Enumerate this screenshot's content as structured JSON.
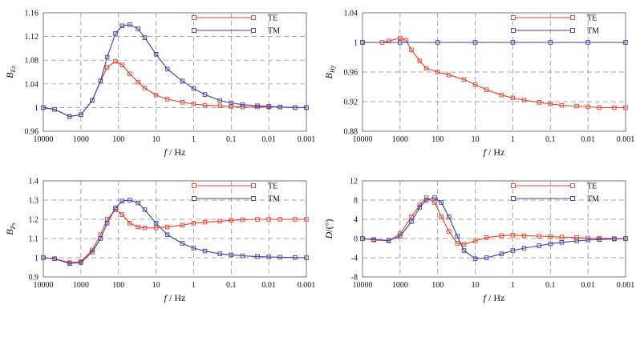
{
  "colors": {
    "TE": "#e8412b",
    "TM": "#3f3f9e"
  },
  "chart_data": [
    {
      "type": "line",
      "xscale": "log-reversed",
      "xlim": [
        10000,
        0.001
      ],
      "ylim": [
        0.96,
        1.16
      ],
      "x_ticks": [
        "10000",
        "1000",
        "100",
        "10",
        "1",
        "0.1",
        "0.01",
        "0.001"
      ],
      "y_ticks": [
        "0.96",
        "1",
        "1.04",
        "1.08",
        "1.12",
        "1.16"
      ],
      "y_tick_values": [
        0.96,
        1.0,
        1.04,
        1.08,
        1.12,
        1.16
      ],
      "xlabel_var": "f",
      "xlabel_unit": "/ Hz",
      "ylabel_main": "B",
      "ylabel_sub": "Ex",
      "legend_position": "top-right",
      "series": [
        {
          "name": "TE",
          "x": [
            10000,
            5000,
            2000,
            1000,
            500,
            300,
            200,
            120,
            80,
            50,
            30,
            20,
            10,
            5,
            2,
            1,
            0.5,
            0.2,
            0.1,
            0.05,
            0.02,
            0.01,
            0.005,
            0.002,
            0.001
          ],
          "y": [
            1.0,
            0.997,
            0.985,
            0.988,
            1.012,
            1.045,
            1.068,
            1.078,
            1.072,
            1.057,
            1.043,
            1.033,
            1.021,
            1.014,
            1.009,
            1.006,
            1.004,
            1.003,
            1.002,
            1.001,
            1.001,
            1.001,
            1.001,
            1.0,
            1.0
          ]
        },
        {
          "name": "TM",
          "x": [
            10000,
            5000,
            2000,
            1000,
            500,
            300,
            200,
            120,
            80,
            50,
            30,
            20,
            10,
            5,
            2,
            1,
            0.5,
            0.2,
            0.1,
            0.05,
            0.02,
            0.01,
            0.005,
            0.002,
            0.001
          ],
          "y": [
            1.0,
            0.997,
            0.985,
            0.988,
            1.012,
            1.045,
            1.085,
            1.125,
            1.138,
            1.14,
            1.133,
            1.118,
            1.09,
            1.065,
            1.045,
            1.032,
            1.022,
            1.012,
            1.008,
            1.005,
            1.003,
            1.002,
            1.001,
            1.0,
            1.0
          ]
        }
      ]
    },
    {
      "type": "line",
      "xscale": "log-reversed",
      "xlim": [
        10000,
        0.001
      ],
      "ylim": [
        0.88,
        1.04
      ],
      "x_ticks": [
        "10000",
        "1000",
        "100",
        "10",
        "1",
        "0.1",
        "0.01",
        "0.001"
      ],
      "y_ticks": [
        "0.88",
        "0.92",
        "0.96",
        "1",
        "1.04"
      ],
      "y_tick_values": [
        0.88,
        0.92,
        0.96,
        1.0,
        1.04
      ],
      "xlabel_var": "f",
      "xlabel_unit": "/ Hz",
      "ylabel_main": "B",
      "ylabel_sub": "Hy",
      "legend_position": "top-right",
      "series": [
        {
          "name": "TE",
          "x": [
            10000,
            3000,
            2000,
            1000,
            700,
            500,
            300,
            200,
            100,
            50,
            20,
            10,
            5,
            2,
            1,
            0.5,
            0.2,
            0.1,
            0.05,
            0.02,
            0.01,
            0.005,
            0.002,
            0.001
          ],
          "y": [
            1.0,
            1.0,
            1.002,
            1.006,
            1.003,
            0.99,
            0.975,
            0.965,
            0.96,
            0.956,
            0.95,
            0.943,
            0.936,
            0.929,
            0.925,
            0.922,
            0.919,
            0.917,
            0.915,
            0.914,
            0.913,
            0.912,
            0.912,
            0.912
          ]
        },
        {
          "name": "TM",
          "x": [
            10000,
            1000,
            100,
            10,
            1,
            0.1,
            0.01,
            0.001
          ],
          "y": [
            1.0,
            1.0,
            1.0,
            1.0,
            1.0,
            1.0,
            1.0,
            1.0
          ]
        }
      ]
    },
    {
      "type": "line",
      "xscale": "log-reversed",
      "xlim": [
        10000,
        0.001
      ],
      "ylim": [
        0.9,
        1.4
      ],
      "x_ticks": [
        "10000",
        "1000",
        "100",
        "10",
        "1",
        "0.1",
        "0.01",
        "0.001"
      ],
      "y_ticks": [
        "0.9",
        "1",
        "1.1",
        "1.2",
        "1.3",
        "1.4"
      ],
      "y_tick_values": [
        0.9,
        1.0,
        1.1,
        1.2,
        1.3,
        1.4
      ],
      "xlabel_var": "f",
      "xlabel_unit": "/ Hz",
      "ylabel_main": "B",
      "ylabel_sub": "Ps",
      "legend_position": "top-right",
      "series": [
        {
          "name": "TE",
          "x": [
            10000,
            5000,
            2000,
            1000,
            500,
            300,
            200,
            120,
            80,
            50,
            30,
            20,
            10,
            5,
            2,
            1,
            0.5,
            0.2,
            0.1,
            0.05,
            0.02,
            0.01,
            0.005,
            0.002,
            0.001
          ],
          "y": [
            1.0,
            0.995,
            0.975,
            0.98,
            1.04,
            1.12,
            1.2,
            1.25,
            1.225,
            1.18,
            1.16,
            1.155,
            1.155,
            1.16,
            1.17,
            1.18,
            1.185,
            1.19,
            1.195,
            1.198,
            1.2,
            1.2,
            1.2,
            1.2,
            1.2
          ]
        },
        {
          "name": "TM",
          "x": [
            10000,
            5000,
            2000,
            1000,
            500,
            300,
            200,
            120,
            80,
            50,
            30,
            20,
            10,
            5,
            2,
            1,
            0.5,
            0.2,
            0.1,
            0.05,
            0.02,
            0.01,
            0.005,
            0.002,
            0.001
          ],
          "y": [
            1.0,
            0.995,
            0.97,
            0.975,
            1.03,
            1.1,
            1.18,
            1.26,
            1.295,
            1.3,
            1.285,
            1.25,
            1.18,
            1.12,
            1.075,
            1.05,
            1.035,
            1.02,
            1.015,
            1.01,
            1.006,
            1.004,
            1.003,
            1.001,
            1.0
          ]
        }
      ]
    },
    {
      "type": "line",
      "xscale": "log-reversed",
      "xlim": [
        10000,
        0.001
      ],
      "ylim": [
        -8,
        12
      ],
      "x_ticks": [
        "10000",
        "1000",
        "100",
        "10",
        "1",
        "0.1",
        "0.01",
        "0.001"
      ],
      "y_ticks": [
        "-8",
        "-4",
        "0",
        "4",
        "8",
        "12"
      ],
      "y_tick_values": [
        -8,
        -4,
        0,
        4,
        8,
        12
      ],
      "xlabel_var": "f",
      "xlabel_unit": "/ Hz",
      "ylabel_main": "D",
      "ylabel_sub": "/(°)",
      "legend_position": "top-right",
      "series": [
        {
          "name": "TE",
          "x": [
            10000,
            5000,
            2000,
            1000,
            500,
            300,
            200,
            120,
            80,
            50,
            30,
            20,
            10,
            5,
            2,
            1,
            0.5,
            0.2,
            0.1,
            0.05,
            0.02,
            0.01,
            0.005,
            0.002,
            0.001
          ],
          "y": [
            0,
            -0.3,
            -0.5,
            1.0,
            4.5,
            7.0,
            8.5,
            7.5,
            4.5,
            1.5,
            -1.0,
            -1.2,
            -0.5,
            0.2,
            0.6,
            0.7,
            0.6,
            0.5,
            0.4,
            0.3,
            0.2,
            0.1,
            0.05,
            0.0,
            0.0
          ]
        },
        {
          "name": "TM",
          "x": [
            10000,
            5000,
            2000,
            1000,
            500,
            300,
            200,
            120,
            80,
            50,
            30,
            20,
            10,
            5,
            2,
            1,
            0.5,
            0.2,
            0.1,
            0.05,
            0.02,
            0.01,
            0.005,
            0.002,
            0.001
          ],
          "y": [
            0,
            -0.2,
            -0.4,
            0.5,
            3.5,
            6.5,
            8.0,
            8.5,
            7.5,
            4.5,
            0.5,
            -2.5,
            -4.2,
            -4.0,
            -3.2,
            -2.5,
            -2.0,
            -1.5,
            -1.1,
            -0.8,
            -0.5,
            -0.3,
            -0.2,
            -0.1,
            0.0
          ]
        }
      ]
    }
  ]
}
